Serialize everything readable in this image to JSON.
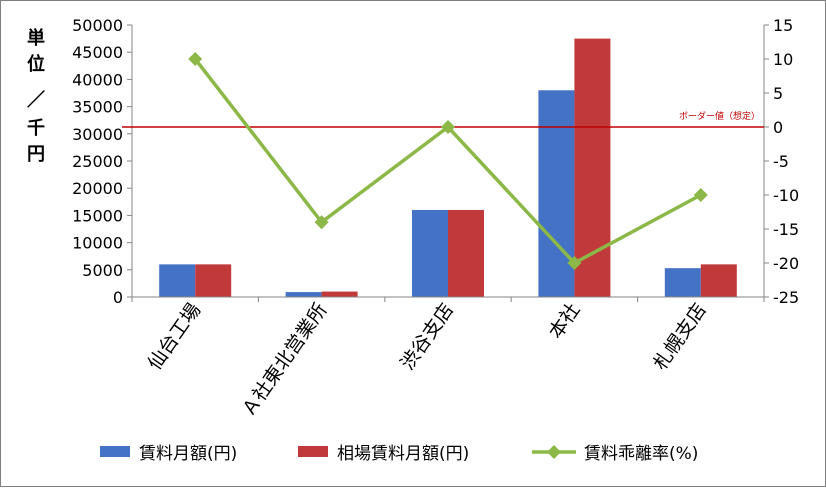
{
  "chart_data": {
    "type": "bar",
    "categories": [
      "仙台工場",
      "Ａ社東北営業所",
      "渋谷支店",
      "本社",
      "札幌支店"
    ],
    "series": [
      {
        "name": "賃料月額(円)",
        "kind": "bar",
        "axis": "left",
        "color": "#4472c4",
        "values": [
          6000,
          900,
          16000,
          38000,
          5300
        ]
      },
      {
        "name": "相場賃料月額(円)",
        "kind": "bar",
        "axis": "left",
        "color": "#c0393b",
        "values": [
          6000,
          1000,
          16000,
          47500,
          6000
        ]
      },
      {
        "name": "賃料乖離率(%)",
        "kind": "line",
        "axis": "right",
        "color": "#8cb847",
        "values": [
          10,
          -14,
          0,
          -20,
          -10
        ]
      }
    ],
    "ylabel": "単位／千円",
    "ylim": [
      0,
      50000
    ],
    "yticks": [
      "0",
      "5000",
      "10000",
      "15000",
      "20000",
      "25000",
      "30000",
      "35000",
      "40000",
      "45000",
      "50000"
    ],
    "y2lim": [
      -25,
      15
    ],
    "y2ticks": [
      "-25",
      "-20",
      "-15",
      "-10",
      "-5",
      "0",
      "5",
      "10",
      "15"
    ],
    "reference_line": {
      "label": "ボーダー値（想定）",
      "axis": "right",
      "value": 0,
      "color": "#c00000"
    },
    "legend_position": "bottom",
    "grid": false
  }
}
